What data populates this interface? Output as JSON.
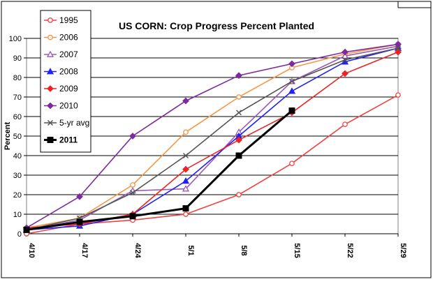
{
  "chart_data": {
    "type": "line",
    "title": "US CORN:  Crop Progress Percent Planted",
    "xlabel": "",
    "ylabel": "Percent",
    "categories": [
      "4/10",
      "4/17",
      "4/24",
      "5/1",
      "5/8",
      "5/15",
      "5/22",
      "5/29"
    ],
    "ylim": [
      0,
      100
    ],
    "yticks": [
      0,
      10,
      20,
      30,
      40,
      50,
      60,
      70,
      80,
      90,
      100
    ],
    "grid": true,
    "legend_position": "top-left",
    "series": [
      {
        "name": "1995",
        "color": "#ee4444",
        "marker": "circle-open",
        "values": [
          0,
          5,
          7,
          10,
          20,
          36,
          56,
          71
        ]
      },
      {
        "name": "2006",
        "color": "#f79646",
        "marker": "circle-open",
        "values": [
          3,
          8,
          25,
          52,
          70,
          85,
          92,
          97
        ]
      },
      {
        "name": "2007",
        "color": "#9b59b6",
        "marker": "triangle-open",
        "values": [
          2,
          7,
          22,
          23,
          52,
          78,
          91,
          96
        ]
      },
      {
        "name": "2008",
        "color": "#2222ee",
        "marker": "triangle",
        "values": [
          2,
          4,
          10,
          27,
          50,
          73,
          88,
          95
        ]
      },
      {
        "name": "2009",
        "color": "#ee2222",
        "marker": "diamond",
        "values": [
          3,
          5,
          10,
          33,
          48,
          62,
          82,
          93
        ]
      },
      {
        "name": "2010",
        "color": "#7d2a9e",
        "marker": "diamond",
        "values": [
          3,
          19,
          50,
          68,
          81,
          87,
          93,
          97
        ]
      },
      {
        "name": "5-yr avg",
        "color": "#555555",
        "marker": "x",
        "values": [
          2,
          8,
          21,
          40,
          62,
          78,
          89,
          95
        ]
      },
      {
        "name": "2011",
        "color": "#000000",
        "marker": "square",
        "values": [
          2,
          6,
          9,
          13,
          40,
          63,
          null,
          null
        ]
      }
    ]
  }
}
